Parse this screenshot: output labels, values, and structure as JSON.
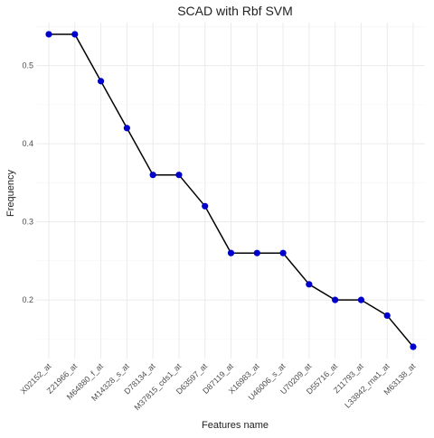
{
  "chart_data": {
    "type": "line",
    "title": "SCAD with Rbf SVM",
    "xlabel": "Features name",
    "ylabel": "Frequency",
    "categories": [
      "X02152_at",
      "Z21966_at",
      "M64880_f_at",
      "M14328_s_at",
      "D78134_at",
      "M37815_cds1_at",
      "D63597_at",
      "D87119_at",
      "X16983_at",
      "U46006_s_at",
      "U70209_at",
      "D55716_at",
      "Z11793_at",
      "L33842_rna1_at",
      "M63138_at"
    ],
    "values": [
      0.54,
      0.54,
      0.48,
      0.42,
      0.36,
      0.36,
      0.32,
      0.26,
      0.26,
      0.26,
      0.22,
      0.2,
      0.2,
      0.18,
      0.14
    ],
    "ylim": [
      0.125,
      0.555
    ],
    "yticks": [
      0.2,
      0.3,
      0.4,
      0.5
    ],
    "ytick_labels": [
      "0.2",
      "0.3",
      "0.4",
      "0.5"
    ],
    "grid": true,
    "colors": {
      "line": "#000000",
      "point": "#0000cc",
      "grid": "#ebebeb"
    }
  }
}
